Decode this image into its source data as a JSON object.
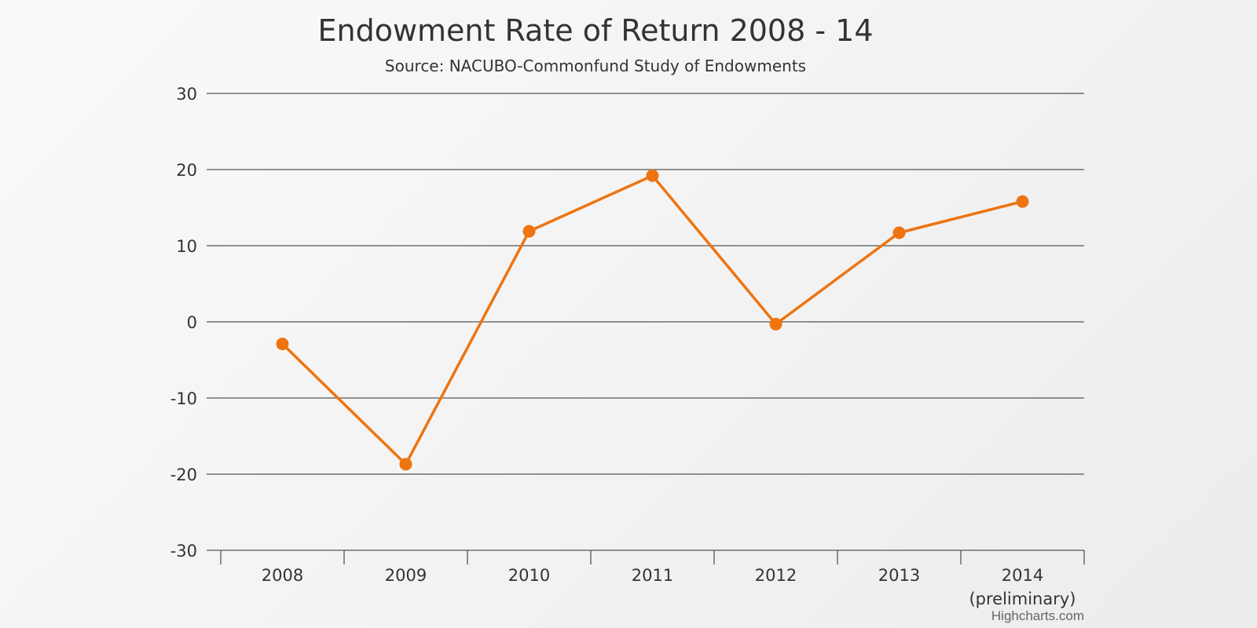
{
  "chart_data": {
    "type": "line",
    "title": "Endowment Rate of Return 2008 - 14",
    "subtitle": "Source: NACUBO-Commonfund Study of Endowments",
    "categories": [
      "2008",
      "2009",
      "2010",
      "2011",
      "2012",
      "2013",
      "2014 (preliminary)"
    ],
    "category_lines": [
      [
        "2008"
      ],
      [
        "2009"
      ],
      [
        "2010"
      ],
      [
        "2011"
      ],
      [
        "2012"
      ],
      [
        "2013"
      ],
      [
        "2014",
        "(preliminary)"
      ]
    ],
    "series": [
      {
        "values": [
          -2.9,
          -18.7,
          11.9,
          19.2,
          -0.3,
          11.7,
          15.8
        ],
        "color": "#ee7410"
      }
    ],
    "ylim": [
      -30,
      30
    ],
    "yticks": [
      30,
      20,
      10,
      0,
      -10,
      -20,
      -30
    ],
    "grid": true,
    "legend": "none",
    "xlabel": "",
    "ylabel": ""
  },
  "credit": "Highcharts.com",
  "colors": {
    "series": "#ee7410",
    "grid": "#555555",
    "text": "#333333"
  }
}
